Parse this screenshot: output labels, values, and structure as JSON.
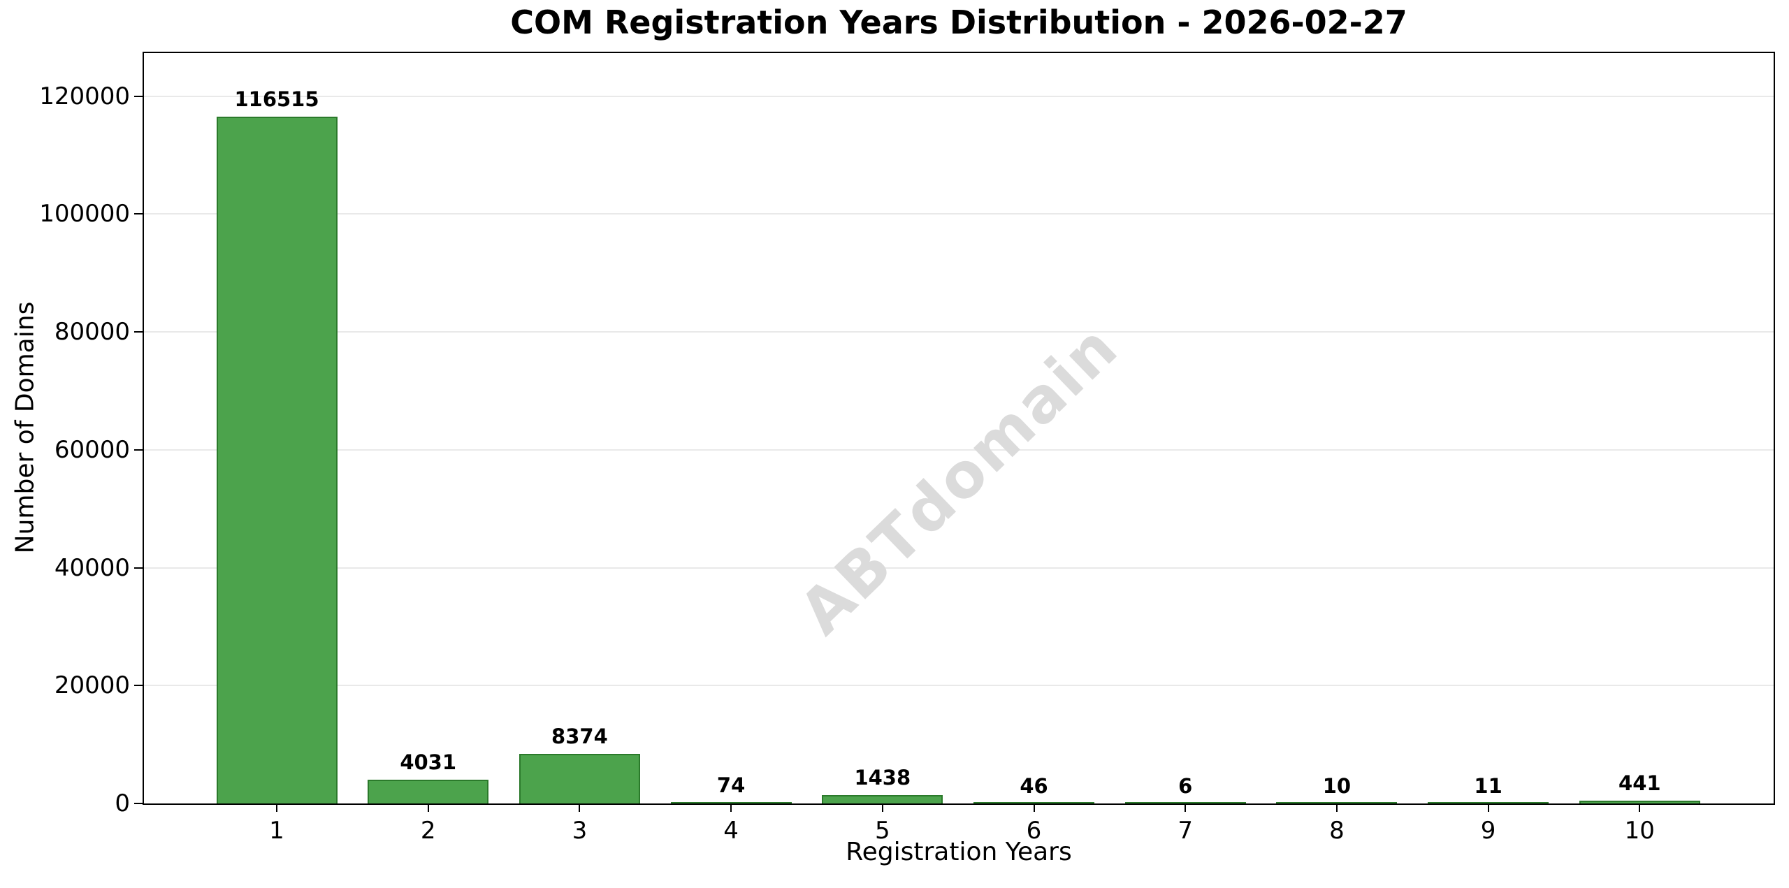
{
  "chart_data": {
    "type": "bar",
    "title": "COM Registration Years Distribution - 2026-02-27",
    "xlabel": "Registration Years",
    "ylabel": "Number of Domains",
    "categories": [
      "1",
      "2",
      "3",
      "4",
      "5",
      "6",
      "7",
      "8",
      "9",
      "10"
    ],
    "values": [
      116515,
      4031,
      8374,
      74,
      1438,
      46,
      6,
      10,
      11,
      441
    ],
    "bar_labels": [
      "116515",
      "4031",
      "8374",
      "74",
      "1438",
      "46",
      "6",
      "10",
      "11",
      "441"
    ],
    "yticks": [
      0,
      20000,
      40000,
      60000,
      80000,
      100000,
      120000
    ],
    "ytick_labels": [
      "0",
      "20000",
      "40000",
      "60000",
      "80000",
      "100000",
      "120000"
    ],
    "ylim": [
      0,
      127300
    ],
    "grid": "horizontal",
    "legend": "none",
    "watermark": "ABTdomain",
    "colors": {
      "bar_fill": "#4ca34c",
      "bar_edge": "#2b7a2b",
      "grid": "#e9e9e9",
      "watermark": "#dbdbdb",
      "text": "#000000",
      "background": "#ffffff"
    }
  }
}
